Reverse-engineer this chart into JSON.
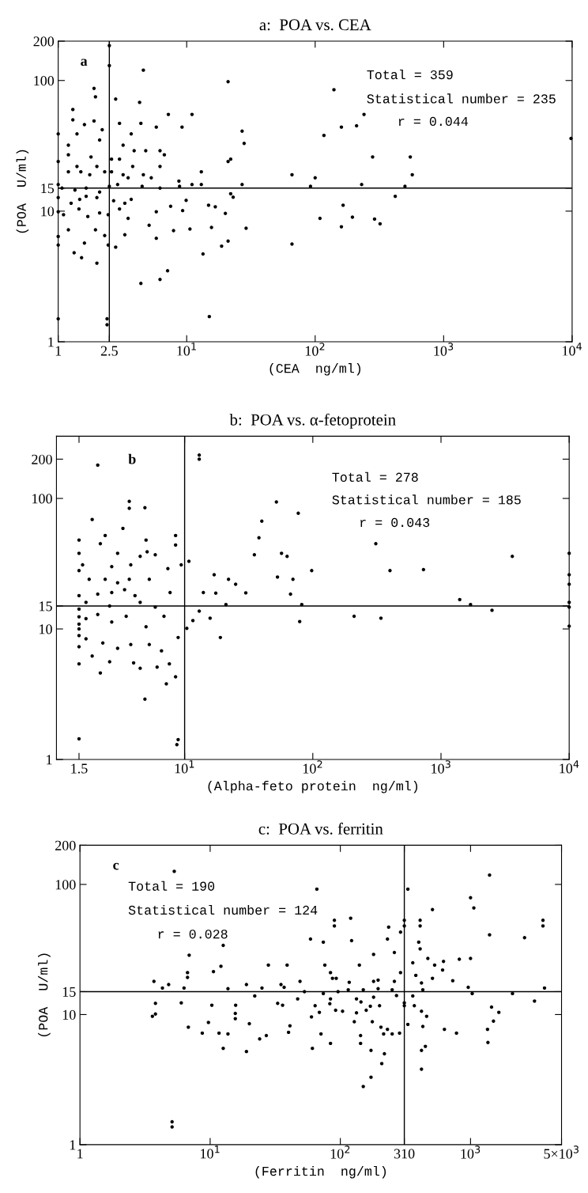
{
  "chart_data": [
    {
      "type": "scatter",
      "title": "a:  POA vs. CEA",
      "xlabel": "(CEA  ng/ml)",
      "ylabel": "(POA  U/ml)",
      "log": "xy",
      "grid": false,
      "legend": false,
      "marker": "circle",
      "xlim": [
        1,
        10000
      ],
      "ylim": [
        1,
        200
      ],
      "xticks": [
        1,
        2.5,
        {
          "value": 10,
          "label": "10$^{1}$"
        },
        {
          "value": 100,
          "label": "10$^{2}$"
        },
        {
          "value": 1000,
          "label": "10$^{3}$"
        },
        {
          "value": 10000,
          "label": "10$^{4}$"
        }
      ],
      "yticks": [
        1,
        10,
        15,
        100,
        200
      ],
      "ref_lines": [
        {
          "axis": "x",
          "value": 2.5,
          "color": "#000000"
        },
        {
          "axis": "y",
          "value": 15,
          "color": "#000000"
        }
      ],
      "annotations": [
        "a",
        "Total = 359",
        "Statistical number = 235",
        "r = 0.044"
      ],
      "series": [
        {
          "color": "#000000",
          "x": [
            2.5,
            2.5,
            4.6,
            21,
            140,
            1.9,
            1.95,
            2.8,
            4.3,
            1.3,
            1.3,
            7.2,
            11,
            240,
            3.0,
            4.4,
            5.8,
            9.2,
            160,
            210,
            1.6,
            1.9,
            1.0,
            1.4,
            2.2,
            3.7,
            27,
            117,
            28,
            9800,
            1.2,
            2.1,
            3.2,
            3.9,
            4.8,
            6.2,
            6.7,
            280,
            550,
            21,
            22,
            1.0,
            1.2,
            1.4,
            1.8,
            2.0,
            2.6,
            3.0,
            3.8,
            6.2,
            13,
            1.2,
            1.5,
            1.76,
            2.3,
            2.6,
            3.2,
            3.5,
            4.6,
            5.3,
            66,
            100,
            570,
            8.7,
            27,
            13,
            1.0,
            1.07,
            1.35,
            1.65,
            2.1,
            2.5,
            2.9,
            4.5,
            6.2,
            8.8,
            11,
            92,
            230,
            500,
            1.65,
            22,
            23,
            420,
            1.0,
            1.26,
            1.47,
            2.0,
            2.7,
            3.3,
            3.7,
            9.9,
            14.8,
            16.7,
            1.0,
            1.1,
            1.45,
            1.7,
            2.1,
            2.45,
            3.0,
            3.5,
            5.8,
            7.5,
            9.3,
            20,
            109,
            165,
            195,
            290,
            320,
            160,
            29,
            15.6,
            10.6,
            7.9,
            5.1,
            1.0,
            1.2,
            1.95,
            2.3,
            3.3,
            5.8,
            1.0,
            1.6,
            2.45,
            2.8,
            21,
            18.7,
            66,
            1.33,
            1.52,
            2.0,
            13.4,
            7.1,
            6.2,
            4.4,
            15,
            1.0,
            2.4,
            2.4
          ],
          "values": [
            185,
            130,
            120,
            98,
            85,
            87,
            75,
            72,
            68,
            60,
            50,
            55,
            55,
            55,
            47,
            47,
            44,
            44,
            44,
            45,
            46,
            49,
            39,
            39,
            42,
            39,
            41,
            38,
            33,
            36,
            32,
            35,
            32,
            29,
            29,
            29,
            27,
            26,
            26,
            24,
            25,
            24,
            27,
            22,
            26,
            22,
            25,
            25,
            22,
            22,
            20,
            20,
            20,
            19,
            20,
            20,
            19,
            18,
            19,
            18,
            19,
            18,
            19,
            17,
            16,
            16,
            16,
            15,
            14.5,
            15,
            14,
            15.5,
            16,
            15.5,
            15,
            15.5,
            16,
            15.5,
            16,
            15.5,
            13,
            13.6,
            12.8,
            13,
            12.7,
            11.5,
            12.3,
            12.7,
            12,
            11.5,
            12.3,
            12.1,
            11.1,
            10.8,
            9.9,
            9.4,
            10.4,
            9.1,
            9.7,
            9.4,
            10.4,
            8.8,
            9.9,
            10.9,
            10.1,
            9.6,
            8.8,
            11.1,
            9.0,
            8.7,
            8.0,
            7.6,
            7.4,
            7.5,
            7.3,
            7.1,
            7.8,
            6.4,
            7.2,
            7.2,
            6.5,
            6.6,
            6.2,
            5.5,
            5.7,
            5.5,
            5.3,
            5.9,
            5.4,
            5.6,
            4.8,
            4.4,
            4.0,
            4.7,
            3.5,
            3.0,
            2.8,
            1.56,
            1.5,
            1.5,
            1.35
          ]
        }
      ]
    },
    {
      "type": "scatter",
      "title": "b:  POA vs. α-fetoprotein",
      "xlabel": "(Alpha-feto protein  ng/ml)",
      "log": "xy",
      "grid": false,
      "legend": false,
      "marker": "circle",
      "xlim": [
        1,
        10000
      ],
      "ylim": [
        1,
        300
      ],
      "xticks": [
        1.5,
        {
          "value": 10,
          "label": "10$^{1}$"
        },
        {
          "value": 100,
          "label": "10$^{2}$"
        },
        {
          "value": 1000,
          "label": "10$^{3}$"
        },
        {
          "value": 10000,
          "label": "10$^{4}$"
        }
      ],
      "yticks": [
        1,
        10,
        15,
        100,
        200
      ],
      "ref_lines": [
        {
          "axis": "x",
          "value": 10,
          "color": "#000000"
        },
        {
          "axis": "y",
          "value": 15,
          "color": "#000000"
        }
      ],
      "annotations": [
        "b",
        "Total = 278",
        "Statistical number = 185",
        "r = 0.043"
      ],
      "series": [
        {
          "color": "#000000",
          "x": [
            2.1,
            13,
            13,
            52,
            3.7,
            3.7,
            4.9,
            1.9,
            77,
            40,
            3.3,
            2.4,
            5.0,
            8.5,
            38,
            2.2,
            8.5,
            310,
            1.5,
            1.5,
            1.5,
            1.5,
            1.5,
            1.5,
            1.5,
            1.5,
            1.5,
            1.5,
            1.5,
            1.5,
            1.6,
            3.0,
            5.1,
            5.9,
            4.5,
            9.4,
            10.8,
            35,
            57,
            63,
            3600,
            2.7,
            3.8,
            7.4,
            98,
            400,
            730,
            1.8,
            2.4,
            3.0,
            3.7,
            5.3,
            17,
            22,
            53,
            70,
            25,
            2.1,
            2.7,
            3.4,
            4.1,
            7.7,
            14,
            17.5,
            30,
            67,
            1.7,
            2.6,
            4.5,
            5.9,
            21,
            1400,
            1700,
            13,
            82,
            1.7,
            2.1,
            2.7,
            3.5,
            5.0,
            6.9,
            11.6,
            15.8,
            210,
            340,
            2500,
            79,
            10.4,
            19,
            1.7,
            2.3,
            3.0,
            3.8,
            5.3,
            6.6,
            8.9,
            1.9,
            2.6,
            4.0,
            6.1,
            7.6,
            2.2,
            4.5,
            7.2,
            8.5,
            4.9,
            8.9,
            8.7,
            10000,
            10000,
            10000,
            10000,
            10000,
            10000
          ],
          "values": [
            180,
            215,
            200,
            94,
            95,
            84,
            85,
            69,
            77,
            67,
            59,
            52,
            48,
            52,
            50,
            45,
            44,
            45,
            48,
            38,
            28,
            18,
            14.2,
            12.4,
            10.9,
            10,
            8.9,
            7.3,
            5.4,
            1.44,
            31,
            38,
            39,
            37,
            36,
            31,
            33,
            37,
            38,
            36,
            36,
            30,
            31,
            29,
            28,
            28,
            28.5,
            24,
            24,
            22.6,
            24,
            24,
            26,
            24,
            25,
            24,
            22,
            18.5,
            19,
            20,
            18,
            19,
            19,
            18.8,
            18.9,
            18.5,
            16,
            15,
            16,
            14.7,
            15.4,
            16.8,
            15.4,
            13.7,
            15.4,
            12,
            12.9,
            11.3,
            12.5,
            10.4,
            12.5,
            11.6,
            12.1,
            12.5,
            12.1,
            13.9,
            11.4,
            10.1,
            8.6,
            8.4,
            7.8,
            7.1,
            7.6,
            7.6,
            6.8,
            8.6,
            6.2,
            5.6,
            5.5,
            5.1,
            5.4,
            4.6,
            5.0,
            3.8,
            4.3,
            2.9,
            1.42,
            1.3,
            38,
            26,
            22,
            16,
            14.7,
            10.5
          ]
        }
      ]
    },
    {
      "type": "scatter",
      "title": "c:  POA vs. ferritin",
      "xlabel": "(Ferritin  ng/ml)",
      "ylabel": "(POA  U/ml)",
      "log": "xy",
      "grid": false,
      "legend": false,
      "marker": "circle",
      "xlim": [
        1,
        5000
      ],
      "ylim": [
        1,
        200
      ],
      "xticks": [
        1,
        {
          "value": 10,
          "label": "10$^{1}$"
        },
        {
          "value": 100,
          "label": "10$^{2}$"
        },
        310,
        {
          "value": 1000,
          "label": "10$^{3}$"
        },
        {
          "value": 5000,
          "label": "5×10$^{3}$"
        }
      ],
      "yticks": [
        1,
        10,
        15,
        100,
        200
      ],
      "ref_lines": [
        {
          "axis": "x",
          "value": 310,
          "color": "#000000"
        },
        {
          "axis": "y",
          "value": 15,
          "color": "#000000"
        }
      ],
      "annotations": [
        "c",
        "Total = 190",
        "Statistical number = 124",
        "r = 0.028"
      ],
      "series": [
        {
          "color": "#000000",
          "x": [
            5.3,
            1400,
            66,
            330,
            1000,
            1060,
            510,
            120,
            90,
            90,
            310,
            310,
            410,
            410,
            235,
            3600,
            3600,
            290,
            1400,
            59,
            230,
            2600,
            74,
            122,
            400,
            12.6,
            6.9,
            180,
            260,
            410,
            470,
            820,
            1000,
            76,
            28,
            39,
            140,
            360,
            620,
            530,
            12.1,
            10.6,
            6.7,
            84,
            290,
            380,
            610,
            3.7,
            6.7,
            4.8,
            4.3,
            19,
            35,
            49,
            87,
            93,
            117,
            180,
            195,
            260,
            420,
            510,
            730,
            960,
            3700,
            6.3,
            13.7,
            25,
            37,
            53,
            74,
            96,
            115,
            150,
            195,
            250,
            1030,
            2100,
            430,
            22,
            47,
            84,
            133,
            180,
            270,
            310,
            360,
            3100,
            3.8,
            6.0,
            10.3,
            15.7,
            33,
            36,
            64,
            83,
            144,
            170,
            200,
            310,
            370,
            1450,
            1650,
            3.6,
            3.8,
            15.6,
            69,
            92,
            104,
            133,
            158,
            420,
            460,
            60,
            15.6,
            128,
            176,
            1500,
            330,
            6.8,
            9.7,
            20,
            41,
            205,
            230,
            430,
            630,
            8.7,
            11.7,
            13.7,
            40,
            71,
            143,
            215,
            250,
            285,
            780,
            24,
            27,
            1350,
            1360,
            12.6,
            19,
            61,
            84,
            143,
            172,
            450,
            420,
            218,
            208,
            420,
            172,
            150,
            5.1,
            5.1
          ],
          "values": [
            126,
            118,
            92,
            92,
            79,
            66,
            64,
            55,
            53,
            48,
            53,
            48,
            53,
            48,
            47,
            53,
            48,
            43,
            41,
            38,
            38,
            39,
            36,
            37,
            36,
            34,
            28.6,
            29,
            30,
            32,
            27,
            26.6,
            27,
            24,
            24,
            24,
            24,
            25,
            25.6,
            24,
            23.5,
            21.4,
            21,
            21,
            21,
            20,
            22,
            18,
            19.3,
            17,
            16,
            17,
            17,
            18,
            19,
            19,
            17.7,
            18,
            18.4,
            18,
            17.5,
            19,
            18.2,
            16.2,
            16,
            16,
            15.8,
            16,
            16.2,
            15,
            14.5,
            15,
            15.5,
            15.5,
            15.8,
            15.5,
            14.5,
            14.5,
            15.5,
            13.9,
            13.2,
            13.2,
            13.2,
            13.6,
            14,
            12.3,
            13.9,
            12.7,
            12.2,
            12.3,
            11.8,
            11.8,
            12.2,
            11.8,
            11.7,
            12.1,
            12.5,
            11.6,
            11.7,
            11.7,
            11.7,
            11.4,
            10.4,
            9.7,
            10.1,
            10.2,
            10.4,
            10.8,
            10.6,
            10.3,
            10.8,
            10.6,
            9.7,
            9.6,
            9.3,
            8.8,
            8.8,
            8.9,
            8.4,
            8.0,
            8.7,
            8.5,
            8.2,
            8.0,
            7.7,
            8.1,
            7.7,
            7.2,
            7.2,
            7.1,
            7.3,
            7.1,
            6.9,
            7.1,
            7.1,
            7.2,
            7.2,
            6.5,
            6.9,
            7.7,
            6.1,
            5.5,
            5.2,
            5.5,
            6.0,
            6.0,
            5.3,
            5.7,
            5.3,
            5.0,
            4.2,
            3.8,
            3.3,
            2.8,
            1.5,
            1.37
          ]
        }
      ]
    }
  ]
}
